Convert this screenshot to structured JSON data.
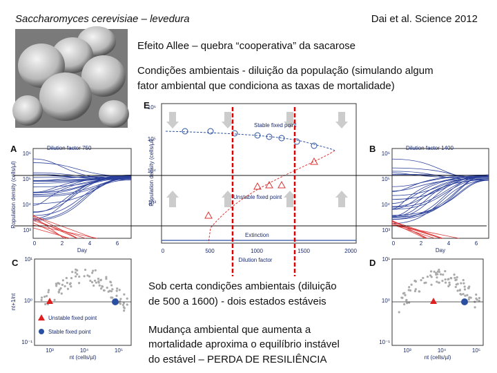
{
  "header": {
    "title_left": "Saccharomyces cerevisiae – levedura",
    "title_right": "Dai et al. Science 2012"
  },
  "subtitle": "Efeito Allee – quebra “cooperativa” da sacarose",
  "description": [
    "Condições ambientais - diluição da população (simulando algum",
    "fator ambiental que condiciona as taxas de mortalidade)"
  ],
  "figure": {
    "panel_e": {
      "letter": "E",
      "ylabel": "Population density (cells/µl)",
      "xlabel": "Dilution factor",
      "xticks": [
        "0",
        "500",
        "1000",
        "1500",
        "2000"
      ],
      "yticks": [
        "10⁶",
        "10⁵",
        "10⁴",
        "10³"
      ],
      "stable": "Stable fixed point",
      "unstable": "Unstable fixed point",
      "extinction": "Extinction"
    },
    "panel_a": {
      "letter": "A",
      "title": "Dilution factor 750",
      "ylabel": "Population density (cells/µl)",
      "xlabel": "Day",
      "xticks": [
        "0",
        "2",
        "4",
        "6"
      ],
      "yticks": [
        "10⁶",
        "10⁵",
        "10⁴",
        "10³"
      ]
    },
    "panel_b": {
      "letter": "B",
      "title": "Dilution factor 1400",
      "xlabel": "Day",
      "xticks": [
        "0",
        "2",
        "4",
        "6"
      ],
      "yticks": [
        "10⁶",
        "10⁵",
        "10⁴",
        "10³"
      ]
    },
    "panel_c": {
      "letter": "C",
      "ylabel": "nt+1/nt",
      "xlabel": "nt (cells/µl)",
      "yticks": [
        "10¹",
        "10⁰",
        "10⁻¹"
      ],
      "xticks": [
        "10³",
        "10⁴",
        "10⁵"
      ],
      "unstable": "Unstable fixed point",
      "stable": "Stable fixed point"
    },
    "panel_d": {
      "letter": "D",
      "xlabel": "nt (cells/µl)",
      "yticks": [
        "10¹",
        "10⁰",
        "10⁻¹"
      ],
      "xticks": [
        "10³",
        "10⁴",
        "10⁵"
      ]
    }
  },
  "notes": [
    "Sob certa condições ambientais (diluição",
    "de 500 a 1600) - dois estados estáveis",
    "Mudança ambiental que aumenta a",
    "mortalidade aproxima o equilíbrio instável",
    "do estável  – PERDA DE RESILIÊNCIA"
  ]
}
